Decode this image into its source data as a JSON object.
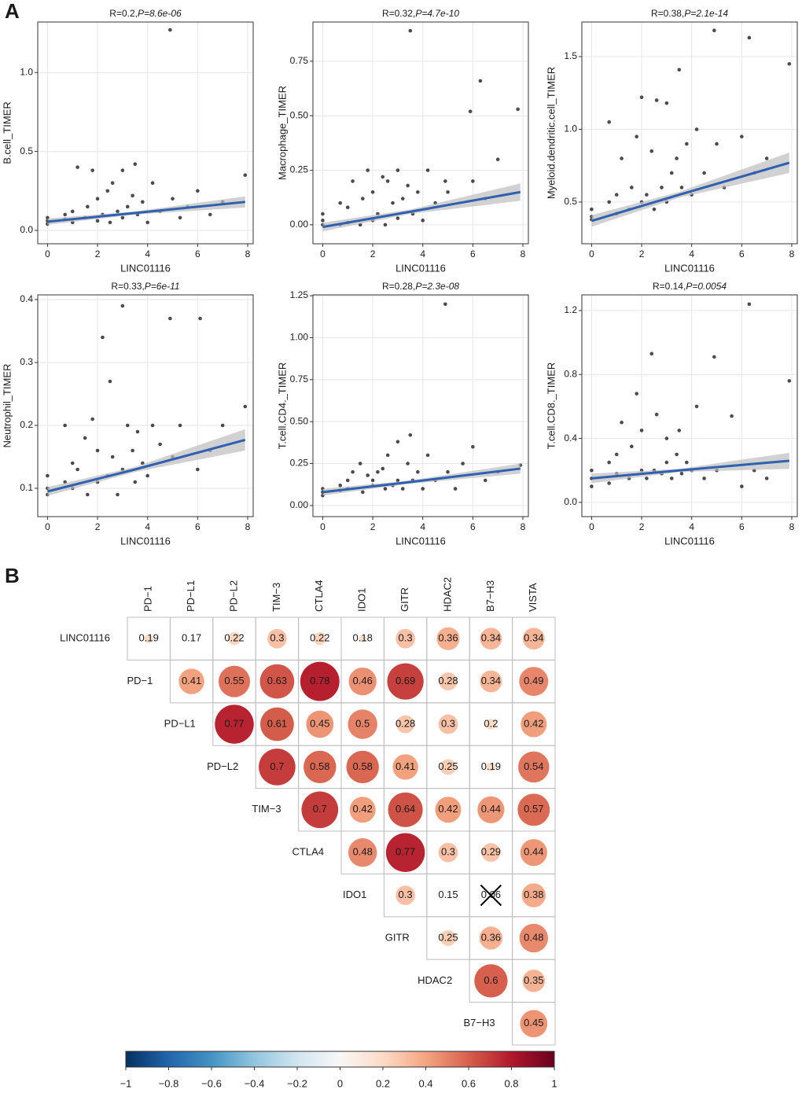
{
  "panels": [
    "A",
    "B"
  ],
  "chart_data": [
    {
      "type": "scatter",
      "title": [
        "R=0.2,",
        "P=8.6e-06"
      ],
      "x_label": "LINC01116",
      "y_label": "B.cell_TIMER",
      "color": "#2b2b2b",
      "x": [
        0,
        0,
        0,
        0.7,
        0.7,
        1,
        1,
        1.2,
        1.5,
        1.6,
        1.8,
        2,
        2,
        2.2,
        2.4,
        2.5,
        2.6,
        2.8,
        3,
        3,
        3.2,
        3.4,
        3.5,
        3.6,
        3.8,
        4,
        4.2,
        4.5,
        4.9,
        5,
        5.3,
        5.6,
        6,
        6.5,
        7,
        7.9
      ],
      "y": [
        0.06,
        0.08,
        0.04,
        0.07,
        0.1,
        0.05,
        0.12,
        0.4,
        0.08,
        0.15,
        0.38,
        0.06,
        0.2,
        0.1,
        0.25,
        0.05,
        0.3,
        0.12,
        0.08,
        0.38,
        0.15,
        0.22,
        0.42,
        0.1,
        0.18,
        0.05,
        0.3,
        0.12,
        1.27,
        0.2,
        0.08,
        0.15,
        0.25,
        0.1,
        0.18,
        0.35
      ],
      "fit": {
        "x": [
          0,
          3.5,
          7.9
        ],
        "y": [
          0.055,
          0.11,
          0.18
        ],
        "lower": [
          0.035,
          0.1,
          0.145
        ],
        "upper": [
          0.075,
          0.12,
          0.215
        ],
        "color": "#3060b0",
        "band_color": "#bdbdbd"
      },
      "xlim": [
        -0.39,
        8.22
      ],
      "ylim": [
        -0.085,
        1.32
      ],
      "xticks": [
        0,
        2,
        4,
        6,
        8
      ],
      "yticks": [
        {
          "value": 0,
          "label": "0.0"
        },
        0.5,
        {
          "value": 1,
          "label": "1.0"
        }
      ],
      "grid": true
    },
    {
      "type": "scatter",
      "title": [
        "R=0.32,",
        "P=4.7e-10"
      ],
      "x_label": "LINC01116",
      "y_label": "Macrophage_TIMER",
      "color": "#2b2b2b",
      "x": [
        0,
        0,
        0,
        0.7,
        0.7,
        1,
        1,
        1.2,
        1.5,
        1.6,
        1.8,
        2,
        2,
        2.2,
        2.4,
        2.5,
        2.6,
        2.8,
        3,
        3,
        3.2,
        3.4,
        3.5,
        3.6,
        3.8,
        4,
        4.2,
        4.5,
        4.9,
        5,
        5.9,
        6.3,
        6,
        6.5,
        7,
        7.8
      ],
      "y": [
        0,
        0.02,
        0.05,
        0,
        0.1,
        0.01,
        0.08,
        0.2,
        0,
        0.12,
        0.25,
        0.02,
        0.15,
        0.05,
        0.22,
        0,
        0.2,
        0.1,
        0.03,
        0.25,
        0.12,
        0.18,
        0.89,
        0.05,
        0.15,
        0.02,
        0.25,
        0.1,
        0.2,
        0.15,
        0.52,
        0.66,
        0.2,
        0.12,
        0.3,
        0.53
      ],
      "fit": {
        "x": [
          0,
          3.5,
          7.9
        ],
        "y": [
          -0.01,
          0.06,
          0.15
        ],
        "lower": [
          -0.03,
          0.05,
          0.11
        ],
        "upper": [
          0.01,
          0.07,
          0.19
        ],
        "color": "#3060b0",
        "band_color": "#bdbdbd"
      },
      "xlim": [
        -0.39,
        8.22
      ],
      "ylim": [
        -0.087,
        0.93
      ],
      "xticks": [
        0,
        2,
        4,
        6,
        8
      ],
      "yticks": [
        {
          "value": 0,
          "label": "0.00"
        },
        0.25,
        {
          "value": 0.5,
          "label": "0.50"
        },
        0.75
      ],
      "grid": true
    },
    {
      "type": "scatter",
      "title": [
        "R=0.38,",
        "P=2.1e-14"
      ],
      "x_label": "LINC01116",
      "y_label": "Myeloid.dendritic.cell_TIMER",
      "color": "#2b2b2b",
      "x": [
        0,
        0,
        0,
        0.7,
        0.7,
        1,
        1,
        1.2,
        1.5,
        1.6,
        1.8,
        2,
        2,
        2.2,
        2.4,
        2.5,
        2.6,
        2.8,
        3,
        3,
        3.2,
        3.4,
        3.5,
        3.6,
        3.8,
        4,
        4.2,
        4.5,
        4.9,
        5,
        5.3,
        6.3,
        6,
        6.5,
        7,
        7.9
      ],
      "y": [
        0.4,
        0.45,
        0.38,
        0.5,
        1.05,
        0.42,
        0.55,
        0.8,
        0.45,
        0.6,
        0.95,
        0.5,
        1.22,
        0.55,
        0.85,
        0.45,
        1.2,
        0.6,
        0.5,
        1.18,
        0.7,
        0.8,
        1.41,
        0.6,
        0.9,
        0.55,
        1.0,
        0.7,
        1.68,
        0.9,
        0.6,
        1.63,
        0.95,
        0.7,
        0.8,
        1.45
      ],
      "fit": {
        "x": [
          0,
          3.5,
          7.9
        ],
        "y": [
          0.37,
          0.55,
          0.77
        ],
        "lower": [
          0.33,
          0.53,
          0.7
        ],
        "upper": [
          0.41,
          0.57,
          0.84
        ],
        "color": "#3060b0",
        "band_color": "#bdbdbd"
      },
      "xlim": [
        -0.39,
        8.22
      ],
      "ylim": [
        0.213,
        1.738
      ],
      "xticks": [
        0,
        2,
        4,
        6,
        8
      ],
      "yticks": [
        0.5,
        {
          "value": 1,
          "label": "1.0"
        },
        1.5
      ],
      "grid": true
    },
    {
      "type": "scatter",
      "title": [
        "R=0.33,",
        "P=6e-11"
      ],
      "x_label": "LINC01116",
      "y_label": "Neutrophil_TIMER",
      "color": "#2b2b2b",
      "x": [
        0,
        0,
        0,
        0.7,
        0.7,
        1,
        1,
        1.2,
        1.5,
        1.6,
        1.8,
        2,
        2,
        2.2,
        2.4,
        2.5,
        2.6,
        2.8,
        3,
        3,
        3.2,
        3.4,
        3.5,
        3.6,
        3.8,
        4,
        4.2,
        4.5,
        4.9,
        5,
        5.3,
        6.1,
        6,
        6.5,
        7,
        7.9
      ],
      "y": [
        0.1,
        0.09,
        0.12,
        0.2,
        0.11,
        0.1,
        0.14,
        0.13,
        0.18,
        0.09,
        0.21,
        0.16,
        0.11,
        0.34,
        0.12,
        0.27,
        0.15,
        0.09,
        0.39,
        0.13,
        0.2,
        0.16,
        0.11,
        0.19,
        0.14,
        0.12,
        0.2,
        0.17,
        0.37,
        0.15,
        0.2,
        0.37,
        0.13,
        0.16,
        0.2,
        0.23
      ],
      "fit": {
        "x": [
          0,
          3.5,
          7.9
        ],
        "y": [
          0.095,
          0.13,
          0.177
        ],
        "lower": [
          0.088,
          0.126,
          0.16
        ],
        "upper": [
          0.102,
          0.134,
          0.194
        ],
        "color": "#3060b0",
        "band_color": "#bdbdbd"
      },
      "xlim": [
        -0.39,
        8.22
      ],
      "ylim": [
        0.055,
        0.4075
      ],
      "xticks": [
        0,
        2,
        4,
        6,
        8
      ],
      "yticks": [
        0.1,
        0.2,
        0.3,
        0.4
      ],
      "grid": true
    },
    {
      "type": "scatter",
      "title": [
        "R=0.28,",
        "P=2.3e-08"
      ],
      "x_label": "LINC01116",
      "y_label": "T.cell.CD4._TIMER",
      "color": "#2b2b2b",
      "x": [
        0,
        0,
        0,
        0.7,
        0.7,
        1,
        1,
        1.2,
        1.5,
        1.6,
        1.8,
        2,
        2,
        2.2,
        2.4,
        2.5,
        2.6,
        2.8,
        3,
        3,
        3.2,
        3.4,
        3.5,
        3.6,
        3.8,
        4,
        4.2,
        4.5,
        4.9,
        5,
        5.3,
        5.6,
        6,
        6.5,
        7,
        7.9
      ],
      "y": [
        0.1,
        0.08,
        0.06,
        0.12,
        0.09,
        0.15,
        0.1,
        0.2,
        0.25,
        0.08,
        0.18,
        0.12,
        0.15,
        0.2,
        0.22,
        0.1,
        0.3,
        0.12,
        0.15,
        0.38,
        0.1,
        0.25,
        0.42,
        0.15,
        0.2,
        0.1,
        0.3,
        0.15,
        1.2,
        0.2,
        0.1,
        0.25,
        0.35,
        0.15,
        0.2,
        0.24
      ],
      "fit": {
        "x": [
          0,
          3.5,
          7.9
        ],
        "y": [
          0.08,
          0.14,
          0.22
        ],
        "lower": [
          0.06,
          0.13,
          0.19
        ],
        "upper": [
          0.1,
          0.15,
          0.25
        ],
        "color": "#3060b0",
        "band_color": "#bdbdbd"
      },
      "xlim": [
        -0.39,
        8.22
      ],
      "ylim": [
        -0.066,
        1.255
      ],
      "xticks": [
        0,
        2,
        4,
        6,
        8
      ],
      "yticks": [
        {
          "value": 0,
          "label": "0.00"
        },
        0.25,
        {
          "value": 0.5,
          "label": "0.50"
        },
        0.75,
        {
          "value": 1,
          "label": "1.00"
        },
        1.25
      ],
      "grid": true
    },
    {
      "type": "scatter",
      "title": [
        "R=0.14,",
        "P=0.0054"
      ],
      "x_label": "LINC01116",
      "y_label": "T.cell.CD8._TIMER",
      "color": "#2b2b2b",
      "x": [
        0,
        0,
        0,
        0.7,
        0.7,
        1,
        1,
        1.2,
        1.5,
        1.6,
        1.8,
        2,
        2,
        2.2,
        2.4,
        2.5,
        2.6,
        2.8,
        3,
        3,
        3.2,
        3.4,
        3.5,
        3.6,
        3.8,
        4,
        4.2,
        4.5,
        4.9,
        5,
        5.6,
        6.3,
        6,
        6.5,
        7,
        7.9
      ],
      "y": [
        0.15,
        0.2,
        0.1,
        0.12,
        0.25,
        0.18,
        0.3,
        0.5,
        0.15,
        0.35,
        0.68,
        0.2,
        0.45,
        0.15,
        0.93,
        0.2,
        0.55,
        0.18,
        0.25,
        0.4,
        0.15,
        0.3,
        0.45,
        0.18,
        0.25,
        0.2,
        0.6,
        0.15,
        0.91,
        0.2,
        0.54,
        1.24,
        0.1,
        0.2,
        0.15,
        0.76
      ],
      "fit": {
        "x": [
          0,
          3.5,
          7.9
        ],
        "y": [
          0.15,
          0.2,
          0.26
        ],
        "lower": [
          0.12,
          0.19,
          0.21
        ],
        "upper": [
          0.18,
          0.21,
          0.31
        ],
        "color": "#3060b0",
        "band_color": "#bdbdbd"
      },
      "xlim": [
        -0.39,
        8.22
      ],
      "ylim": [
        -0.089,
        1.298
      ],
      "xticks": [
        0,
        2,
        4,
        6,
        8
      ],
      "yticks": [
        {
          "value": 0,
          "label": "0.0"
        },
        0.4,
        0.8,
        1.2
      ],
      "grid": true
    },
    {
      "type": "corrplot",
      "columns": [
        "PD−1",
        "PD−L1",
        "PD−L2",
        "TIM−3",
        "CTLA4",
        "IDO1",
        "GITR",
        "HDAC2",
        "B7−H3",
        "VISTA"
      ],
      "rows": [
        "LINC01116",
        "PD−1",
        "PD−L1",
        "PD−L2",
        "TIM−3",
        "CTLA4",
        "IDO1",
        "GITR",
        "HDAC2",
        "B7−H3"
      ],
      "values": [
        [
          0.19,
          0.17,
          0.22,
          0.3,
          0.22,
          0.18,
          0.3,
          0.36,
          0.34,
          0.34
        ],
        [
          0.41,
          0.55,
          0.63,
          0.78,
          0.46,
          0.69,
          0.28,
          0.34,
          0.49
        ],
        [
          0.77,
          0.61,
          0.45,
          0.5,
          0.28,
          0.3,
          0.2,
          0.42
        ],
        [
          0.7,
          0.58,
          0.58,
          0.41,
          0.25,
          0.19,
          0.54
        ],
        [
          0.7,
          0.42,
          0.64,
          0.42,
          0.44,
          0.57
        ],
        [
          0.48,
          0.77,
          0.3,
          0.29,
          0.44
        ],
        [
          0.3,
          0.15,
          0.06,
          0.38
        ],
        [
          0.25,
          0.36,
          0.48
        ],
        [
          0.6,
          0.35
        ],
        [
          0.45
        ]
      ],
      "crossed": [
        [
          6,
          2
        ]
      ],
      "clim": [
        -1,
        1
      ],
      "colormap": [
        "#053061",
        "#2166ac",
        "#4393c3",
        "#92c5de",
        "#d1e5f0",
        "#f7f7f7",
        "#fddbc7",
        "#f4a582",
        "#d6604d",
        "#b2182b",
        "#67001f"
      ],
      "cticks": [
        {
          "value": -1,
          "label": "−1"
        },
        {
          "value": -0.8,
          "label": "−0.8"
        },
        {
          "value": -0.6,
          "label": "−0.6"
        },
        {
          "value": -0.4,
          "label": "−0.4"
        },
        {
          "value": -0.2,
          "label": "−0.2"
        },
        0,
        0.2,
        0.4,
        0.6,
        0.8,
        1
      ]
    }
  ]
}
